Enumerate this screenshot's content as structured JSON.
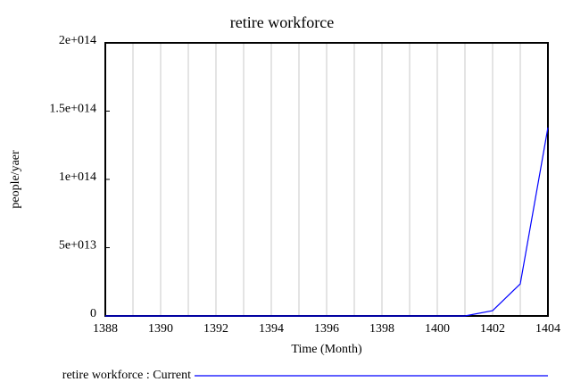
{
  "chart_data": {
    "type": "line",
    "title": "retire workforce",
    "x_label": "Time (Month)",
    "y_label": "people/yaer",
    "x": [
      1388,
      1389,
      1390,
      1391,
      1392,
      1393,
      1394,
      1395,
      1396,
      1397,
      1398,
      1399,
      1400,
      1401,
      1402,
      1403,
      1404
    ],
    "series": [
      {
        "name": "retire workforce : Current",
        "color": "#0000ff",
        "values": [
          0,
          0,
          0,
          0,
          0,
          0,
          0,
          0,
          0,
          0,
          0,
          0,
          0,
          0,
          3900000000000,
          23500000000000,
          138000000000000
        ]
      }
    ],
    "xlim": [
      1388,
      1404
    ],
    "xticks": [
      1388,
      1390,
      1392,
      1394,
      1396,
      1398,
      1400,
      1402,
      1404
    ],
    "x_minor_ticks": [
      1389,
      1391,
      1393,
      1395,
      1397,
      1399,
      1401,
      1403
    ],
    "ylim": [
      0,
      200000000000000
    ],
    "yticks": [
      0,
      {
        "value": 50000000000000,
        "label": "5e+013"
      },
      {
        "value": 100000000000000,
        "label": "1e+014"
      },
      {
        "value": 150000000000000,
        "label": "1.5e+014"
      },
      {
        "value": 200000000000000,
        "label": "2e+014"
      }
    ],
    "grid": true
  }
}
